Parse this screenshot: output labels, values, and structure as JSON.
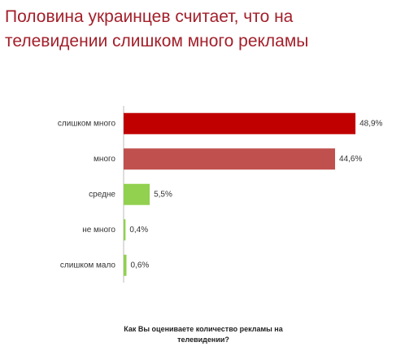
{
  "chart_data": {
    "type": "bar",
    "orientation": "horizontal",
    "title": "Половина украинцев считает, что на телевидении слишком много рекламы",
    "categories": [
      "слишком много",
      "много",
      "средне",
      "не много",
      "слишком мало"
    ],
    "values": [
      48.9,
      44.6,
      5.5,
      0.4,
      0.6
    ],
    "value_labels": [
      "48,9%",
      "44,6%",
      "5,5%",
      "0,4%",
      "0,6%"
    ],
    "colors": [
      "#c00000",
      "#c0504d",
      "#92d050",
      "#92d050",
      "#92d050"
    ],
    "footnote": "Как Вы оцениваете количество рекламы на телевидении?"
  }
}
